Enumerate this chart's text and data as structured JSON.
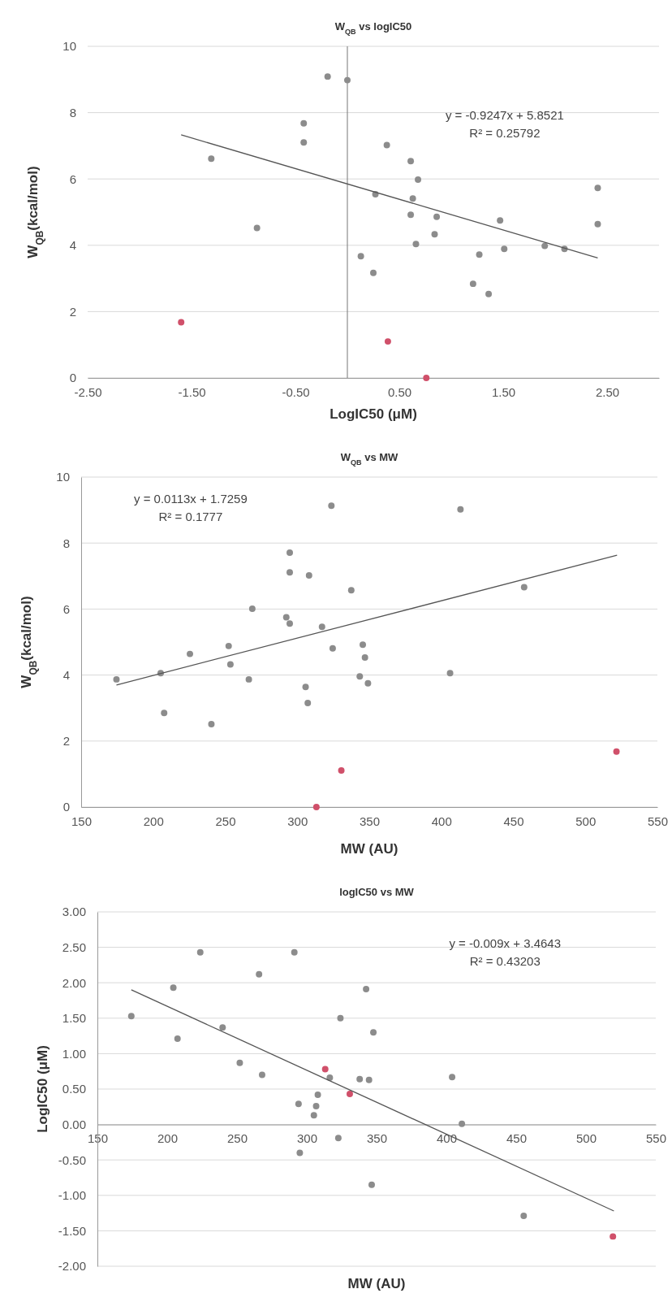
{
  "chart_data": [
    {
      "type": "scatter",
      "title": "W$_{QB}$ vs logIC50",
      "xlabel": "LogIC50 (μM)",
      "ylabel": "W$_{QB}$(kcal/mol)",
      "xlim": [
        -2.5,
        3
      ],
      "xticks": [
        {
          "value": -2.5,
          "label": "-2.50"
        },
        {
          "value": -1.5,
          "label": "-1.50"
        },
        {
          "value": -0.5,
          "label": "-0.50"
        },
        {
          "value": 0.5,
          "label": "0.50"
        },
        {
          "value": 1.5,
          "label": "1.50"
        },
        {
          "value": 2.5,
          "label": "2.50"
        }
      ],
      "ylim": [
        0,
        10
      ],
      "yticks": [
        0,
        2,
        4,
        6,
        8,
        10
      ],
      "grid": "y",
      "marker": "circle",
      "annotations": [
        "y = -0.9247x + 5.8521",
        "R² = 0.25792"
      ],
      "series": [
        {
          "color": "#8c8c8c",
          "x": [
            -0.19,
            0.0,
            -0.42,
            -0.42,
            -1.31,
            -0.87,
            0.38,
            0.61,
            0.68,
            0.27,
            0.63,
            0.61,
            0.86,
            0.66,
            0.84,
            0.13,
            0.25,
            1.47,
            1.51,
            1.27,
            1.21,
            1.36,
            1.9,
            2.09,
            2.41,
            2.41
          ],
          "values": [
            9.09,
            8.98,
            7.68,
            7.1,
            6.61,
            4.52,
            7.02,
            6.54,
            5.98,
            5.54,
            5.41,
            4.92,
            4.86,
            4.04,
            4.33,
            3.67,
            3.17,
            4.75,
            3.89,
            3.72,
            2.84,
            2.53,
            3.98,
            3.89,
            5.73,
            4.64
          ]
        },
        {
          "color": "#d0506a",
          "x": [
            -1.6,
            0.39,
            0.76
          ],
          "values": [
            1.68,
            1.1,
            0.0
          ]
        },
        {
          "type": "line",
          "color": "#555555",
          "marker": "none",
          "x": [
            -1.6,
            2.41
          ],
          "values": [
            7.33,
            3.62
          ]
        }
      ]
    },
    {
      "type": "scatter",
      "title": "W$_{QB}$ vs MW",
      "xlabel": "MW (AU)",
      "ylabel": "W$_{QB}$(kcal/mol)",
      "xlim": [
        150,
        550
      ],
      "xticks": [
        150,
        200,
        250,
        300,
        350,
        400,
        450,
        500,
        550
      ],
      "ylim": [
        0,
        10
      ],
      "yticks": [
        0,
        2,
        4,
        6,
        8,
        10
      ],
      "grid": "y",
      "marker": "circle",
      "annotations": [
        "y = 0.0113x + 1.7259",
        "R² = 0.1777"
      ],
      "series": [
        {
          "color": "#8c8c8c",
          "x": [
            174.5,
            205.2,
            207.6,
            225.5,
            240.4,
            252.4,
            253.6,
            266.4,
            268.8,
            294.8,
            294.8,
            292.4,
            294.8,
            308.2,
            305.8,
            307.3,
            323.7,
            317.2,
            324.6,
            337.5,
            345.5,
            347.0,
            343.4,
            349.1,
            406.1,
            413.3,
            457.5
          ],
          "values": [
            3.87,
            4.06,
            2.85,
            4.64,
            2.51,
            4.88,
            4.32,
            3.87,
            6.01,
            7.71,
            7.11,
            5.75,
            5.56,
            7.02,
            3.64,
            3.15,
            9.13,
            5.46,
            4.81,
            6.57,
            4.92,
            4.53,
            3.96,
            3.75,
            4.06,
            9.02,
            6.66
          ]
        },
        {
          "color": "#d0506a",
          "x": [
            521.6,
            330.6,
            313.3
          ],
          "values": [
            1.68,
            1.11,
            0.0
          ]
        },
        {
          "type": "line",
          "color": "#555555",
          "marker": "none",
          "x": [
            174.5,
            522
          ],
          "values": [
            3.7,
            7.63
          ]
        }
      ]
    },
    {
      "type": "scatter",
      "title": "logIC50 vs MW",
      "xlabel": "MW (AU)",
      "ylabel": "LogIC50 (μM)",
      "xlim": [
        150,
        550
      ],
      "xticks": [
        150,
        200,
        250,
        300,
        350,
        400,
        450,
        500,
        550
      ],
      "ylim": [
        -2,
        3
      ],
      "yticks": [
        {
          "value": -2,
          "label": "-2.00"
        },
        {
          "value": -1.5,
          "label": "-1.50"
        },
        {
          "value": -1,
          "label": "-1.00"
        },
        {
          "value": -0.5,
          "label": "-0.50"
        },
        {
          "value": 0,
          "label": "0.00"
        },
        {
          "value": 0.5,
          "label": "0.50"
        },
        {
          "value": 1,
          "label": "1.00"
        },
        {
          "value": 1.5,
          "label": "1.50"
        },
        {
          "value": 2,
          "label": "2.00"
        },
        {
          "value": 2.5,
          "label": "2.50"
        },
        {
          "value": 3,
          "label": "3.00"
        }
      ],
      "grid": "y",
      "marker": "circle",
      "annotations": [
        "y = -0.009x + 3.4643",
        "R² = 0.43203"
      ],
      "series": [
        {
          "color": "#8c8c8c",
          "x": [
            174.3,
            204.4,
            207.4,
            223.7,
            239.7,
            252.0,
            265.8,
            268.0,
            291.1,
            294.1,
            295.0,
            305.1,
            306.7,
            307.9,
            322.6,
            324.1,
            316.5,
            337.9,
            344.6,
            342.5,
            347.7,
            346.5,
            404.1,
            411.1,
            455.4
          ],
          "values": [
            1.53,
            1.93,
            1.21,
            2.43,
            1.37,
            0.87,
            2.12,
            0.7,
            2.43,
            0.29,
            -0.4,
            0.13,
            0.26,
            0.42,
            -0.19,
            1.5,
            0.66,
            0.64,
            0.63,
            1.91,
            1.3,
            -0.85,
            0.67,
            0.01,
            -1.29
          ]
        },
        {
          "color": "#d0506a",
          "x": [
            313.2,
            330.8,
            519.3
          ],
          "values": [
            0.78,
            0.43,
            -1.58
          ]
        },
        {
          "type": "line",
          "color": "#555555",
          "marker": "none",
          "x": [
            174.3,
            520
          ],
          "values": [
            1.9,
            -1.22
          ]
        }
      ]
    }
  ]
}
